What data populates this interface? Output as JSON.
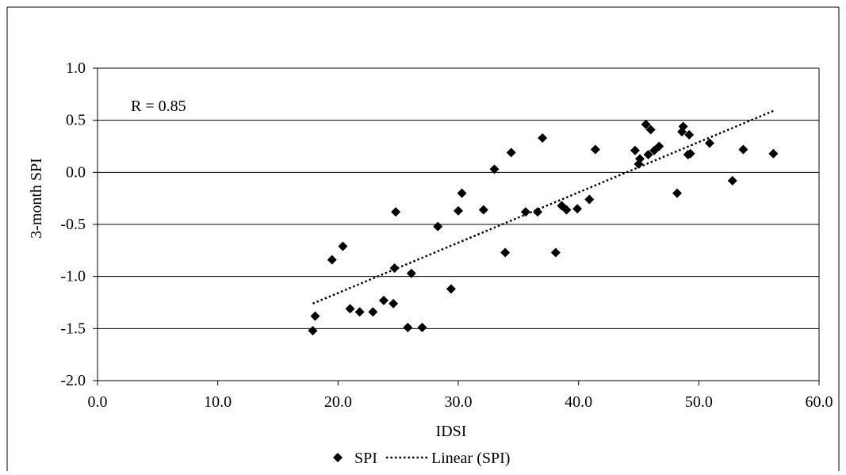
{
  "chart_data": {
    "type": "scatter",
    "xlabel": "IDSI",
    "ylabel": "3-month SPI",
    "xlim": [
      0,
      60
    ],
    "ylim": [
      -2,
      1
    ],
    "x_ticks": [
      "0.0",
      "10.0",
      "20.0",
      "30.0",
      "40.0",
      "50.0",
      "60.0"
    ],
    "y_ticks": [
      "1.0",
      "0.5",
      "0.0",
      "-0.5",
      "-1.0",
      "-1.5",
      "-2.0"
    ],
    "horizontal_gridlines": true,
    "vertical_gridlines": false,
    "legend_position": "bottom",
    "annotation": "R = 0.85",
    "series": [
      {
        "name": "SPI",
        "marker": "diamond",
        "color": "#000000",
        "points": [
          [
            17.9,
            -1.52
          ],
          [
            18.1,
            -1.38
          ],
          [
            19.5,
            -0.84
          ],
          [
            20.4,
            -0.71
          ],
          [
            21.0,
            -1.31
          ],
          [
            21.8,
            -1.34
          ],
          [
            22.9,
            -1.34
          ],
          [
            23.8,
            -1.23
          ],
          [
            24.6,
            -1.26
          ],
          [
            24.7,
            -0.92
          ],
          [
            24.8,
            -0.38
          ],
          [
            25.8,
            -1.49
          ],
          [
            26.1,
            -0.97
          ],
          [
            27.0,
            -1.49
          ],
          [
            28.3,
            -0.52
          ],
          [
            29.4,
            -1.12
          ],
          [
            30.0,
            -0.37
          ],
          [
            30.3,
            -0.2
          ],
          [
            32.1,
            -0.36
          ],
          [
            33.0,
            0.03
          ],
          [
            33.9,
            -0.77
          ],
          [
            34.4,
            0.19
          ],
          [
            35.6,
            -0.38
          ],
          [
            36.6,
            -0.38
          ],
          [
            37.0,
            0.33
          ],
          [
            38.1,
            -0.77
          ],
          [
            38.6,
            -0.32
          ],
          [
            39.0,
            -0.36
          ],
          [
            39.9,
            -0.35
          ],
          [
            40.9,
            -0.26
          ],
          [
            41.4,
            0.22
          ],
          [
            44.7,
            0.21
          ],
          [
            45.0,
            0.08
          ],
          [
            45.1,
            0.13
          ],
          [
            45.6,
            0.46
          ],
          [
            45.8,
            0.17
          ],
          [
            46.0,
            0.41
          ],
          [
            46.3,
            0.21
          ],
          [
            46.7,
            0.25
          ],
          [
            48.2,
            -0.2
          ],
          [
            48.6,
            0.39
          ],
          [
            48.7,
            0.44
          ],
          [
            49.1,
            0.17
          ],
          [
            49.2,
            0.36
          ],
          [
            49.3,
            0.18
          ],
          [
            50.9,
            0.28
          ],
          [
            52.8,
            -0.08
          ],
          [
            53.7,
            0.22
          ],
          [
            56.2,
            0.18
          ]
        ]
      },
      {
        "name": "Linear (SPI)",
        "style": "dotted",
        "color": "#000000",
        "line": [
          [
            17.9,
            -1.26
          ],
          [
            56.2,
            0.59
          ]
        ]
      }
    ]
  }
}
